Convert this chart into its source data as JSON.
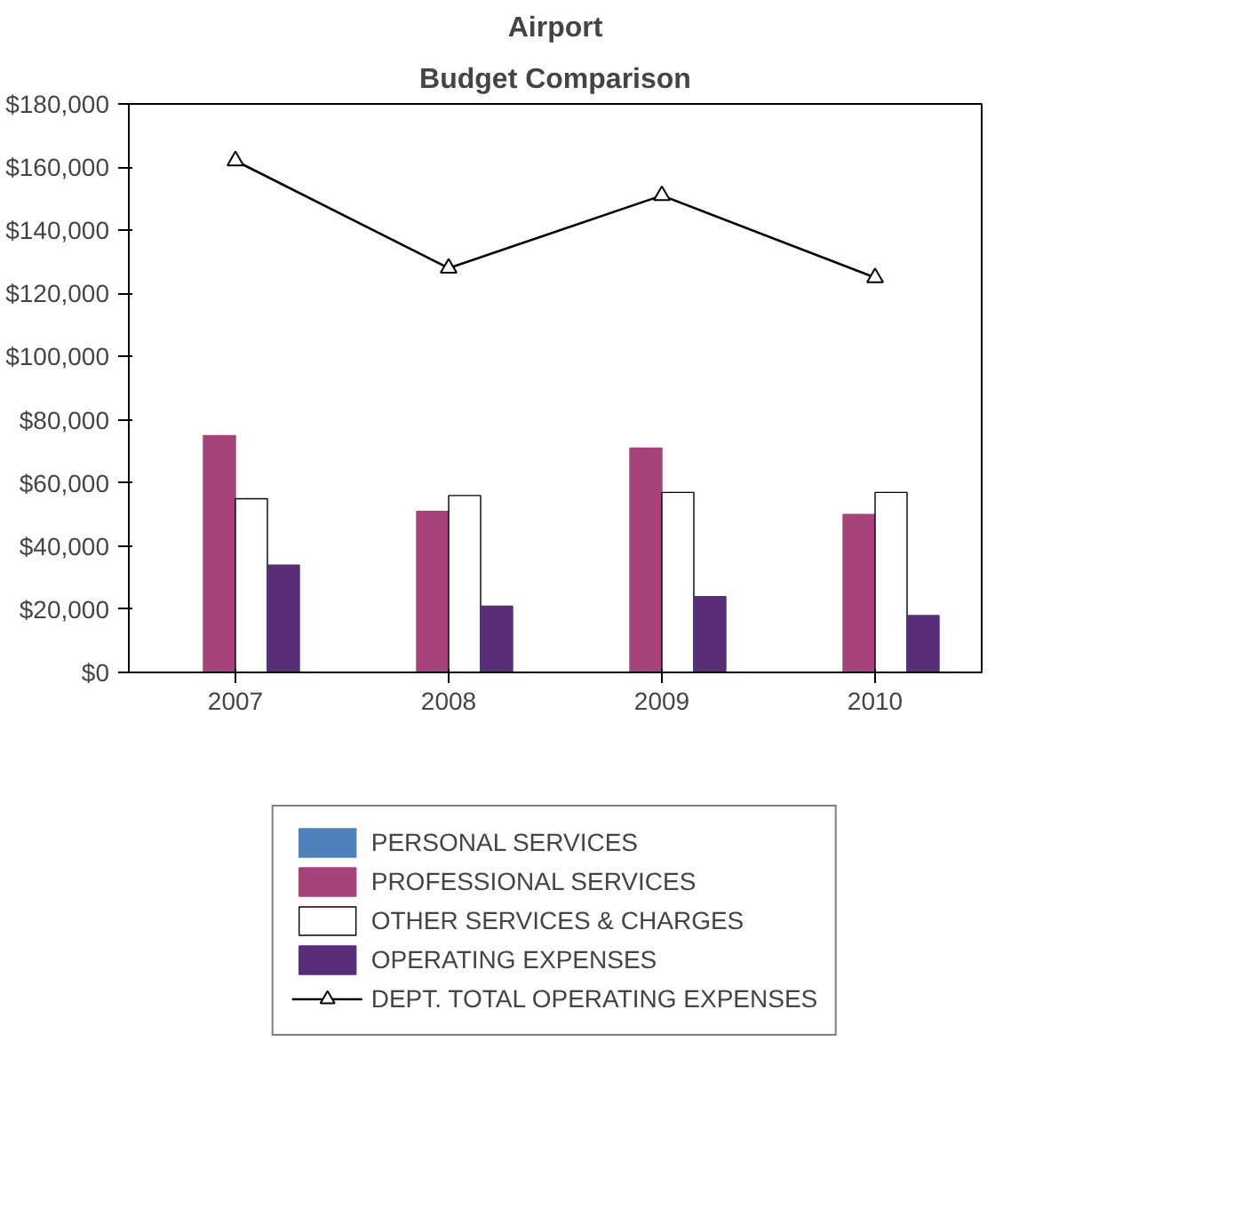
{
  "chart_data": {
    "type": "bar",
    "title": "Airport",
    "subtitle": "Budget Comparison",
    "categories": [
      "2007",
      "2008",
      "2009",
      "2010"
    ],
    "series": [
      {
        "name": "PERSONAL SERVICES",
        "color": "#4f81bd",
        "values": [
          0,
          0,
          0,
          0
        ]
      },
      {
        "name": "PROFESSIONAL SERVICES",
        "color": "#a5437a",
        "values": [
          75000,
          51000,
          71000,
          50000
        ]
      },
      {
        "name": "OTHER SERVICES & CHARGES",
        "color": "#ffffff",
        "values": [
          55000,
          56000,
          57000,
          57000
        ]
      },
      {
        "name": "OPERATING EXPENSES",
        "color": "#5a2d78",
        "values": [
          34000,
          21000,
          24000,
          18000
        ]
      },
      {
        "name": "DEPT. TOTAL OPERATING EXPENSES",
        "type": "line",
        "marker": "triangle",
        "color": "#000000",
        "values": [
          162000,
          128000,
          151000,
          125000
        ]
      }
    ],
    "ylim": [
      0,
      180000
    ],
    "yticks": [
      {
        "value": 0,
        "label": "$0"
      },
      {
        "value": 20000,
        "label": "$20,000"
      },
      {
        "value": 40000,
        "label": "$40,000"
      },
      {
        "value": 60000,
        "label": "$60,000"
      },
      {
        "value": 80000,
        "label": "$80,000"
      },
      {
        "value": 100000,
        "label": "$100,000"
      },
      {
        "value": 120000,
        "label": "$120,000"
      },
      {
        "value": 140000,
        "label": "$140,000"
      },
      {
        "value": 160000,
        "label": "$160,000"
      },
      {
        "value": 180000,
        "label": "$180,000"
      }
    ],
    "grid": false,
    "legend": "bottom"
  }
}
